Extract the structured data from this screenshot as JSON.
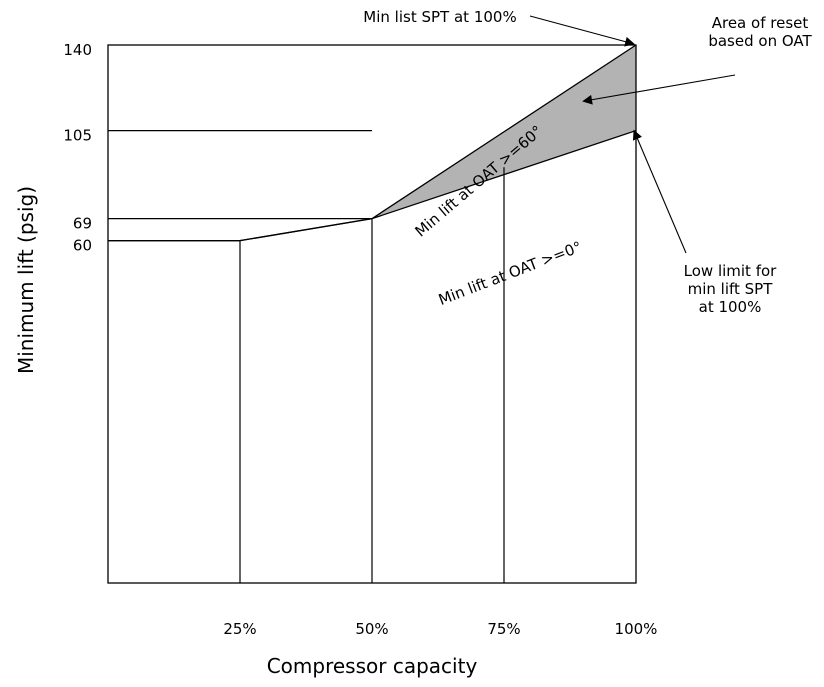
{
  "chart_data": {
    "type": "line",
    "title": "",
    "xlabel": "Compressor capacity",
    "ylabel": "Minimum lift (psig)",
    "x_ticks": [
      "25%",
      "50%",
      "75%",
      "100%"
    ],
    "y_ticks": [
      "140",
      "105",
      "69",
      "60"
    ],
    "xlim": [
      0,
      100
    ],
    "ylim": [
      -80,
      140
    ],
    "grid": false,
    "series": [
      {
        "key": "oat_high",
        "label": "Min lift at OAT >=60°",
        "x": [
          0,
          25,
          50,
          100
        ],
        "y": [
          60,
          60,
          69,
          140
        ]
      },
      {
        "key": "oat_low",
        "label": "Min lift at OAT >=0°",
        "x": [
          0,
          25,
          50,
          100
        ],
        "y": [
          60,
          60,
          69,
          105
        ]
      }
    ],
    "reference_lines": {
      "horizontal": [
        {
          "y": 105,
          "x_end": 50
        },
        {
          "y": 69,
          "x_end": 50
        },
        {
          "y": 60,
          "x_end": 25
        }
      ],
      "vertical": [
        {
          "x": 25,
          "y_top": 60
        },
        {
          "x": 50,
          "y_top": 69
        },
        {
          "x": 75,
          "y_top": 90
        }
      ]
    },
    "shaded_area": {
      "color": "#b3b3b3",
      "x": [
        50,
        100
      ],
      "y_upper": [
        69,
        140
      ],
      "y_lower": [
        69,
        105
      ]
    },
    "annotations": [
      {
        "key": "top",
        "text_lines": [
          "Min list SPT at 100%"
        ],
        "points_to": {
          "x": 100,
          "y": 140
        }
      },
      {
        "key": "area",
        "text_lines": [
          "Area of reset",
          "based on OAT"
        ],
        "points_to": {
          "x": 90,
          "y": 117
        }
      },
      {
        "key": "low",
        "text_lines": [
          "Low limit for",
          "min lift SPT",
          "at 100%"
        ],
        "points_to": {
          "x": 100,
          "y": 105
        }
      }
    ]
  },
  "colors": {
    "line": "#000000",
    "fill": "#b3b3b3"
  }
}
